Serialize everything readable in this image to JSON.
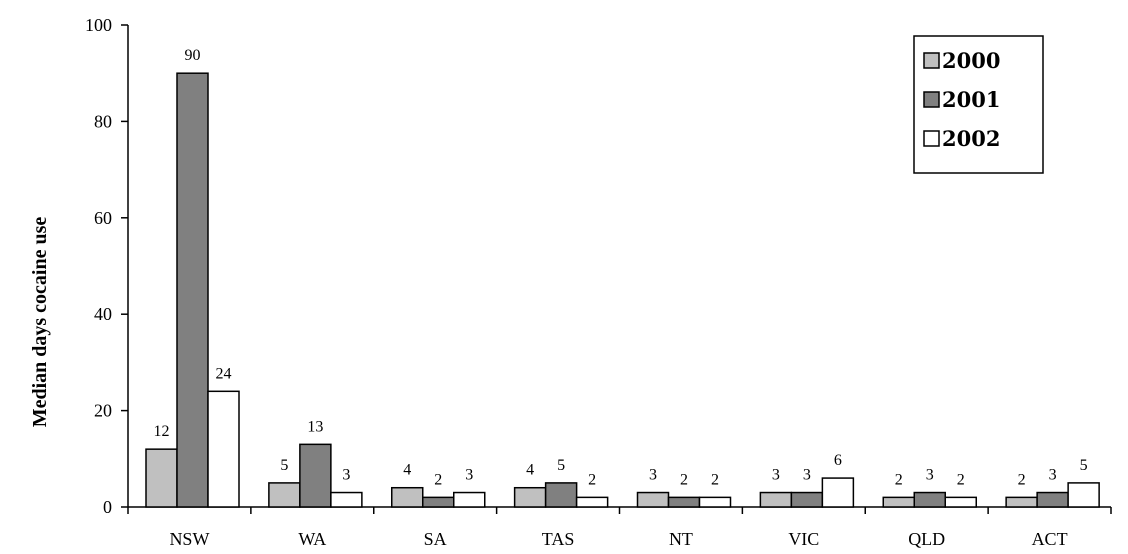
{
  "chart_data": {
    "type": "bar",
    "title": "",
    "xlabel": "",
    "ylabel": "Median days cocaine use",
    "ylim": [
      0,
      100
    ],
    "yticks": [
      0,
      20,
      40,
      60,
      80,
      100
    ],
    "categories": [
      "NSW",
      "WA",
      "SA",
      "TAS",
      "NT",
      "VIC",
      "QLD",
      "ACT"
    ],
    "series": [
      {
        "name": "2000",
        "values": [
          12,
          5,
          4,
          4,
          3,
          3,
          2,
          2
        ],
        "color": "#c0c0c0"
      },
      {
        "name": "2001",
        "values": [
          90,
          13,
          2,
          5,
          2,
          3,
          3,
          3
        ],
        "color": "#808080"
      },
      {
        "name": "2002",
        "values": [
          24,
          3,
          3,
          2,
          2,
          6,
          2,
          5
        ],
        "color": "#ffffff"
      }
    ],
    "data_labels": true,
    "grid": false,
    "legend": "top-right"
  }
}
